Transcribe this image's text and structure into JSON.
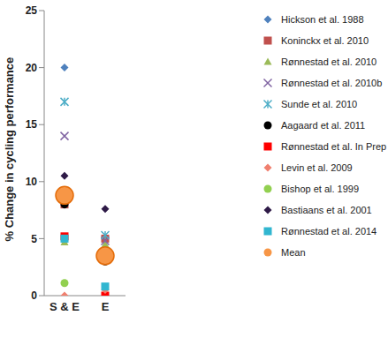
{
  "chart_data": {
    "type": "scatter",
    "y_label": "% Change in cycling performance",
    "categories": [
      "S & E",
      "E"
    ],
    "ylim": [
      0,
      25
    ],
    "yticks": [
      0,
      5,
      10,
      15,
      20,
      25
    ],
    "grid": false,
    "legend": "right",
    "series": [
      {
        "name": "Hickson et al. 1988",
        "color": "#4F81BD",
        "marker": "diamond",
        "values": [
          20,
          null
        ]
      },
      {
        "name": "Koninckx et al. 2010",
        "color": "#C0504D",
        "marker": "square",
        "values": [
          8,
          5
        ]
      },
      {
        "name": "Rønnestad et al. 2010",
        "color": "#9BBB59",
        "marker": "triangle",
        "values": [
          4.7,
          4.5
        ]
      },
      {
        "name": "Rønnestad et al. 2010b",
        "color": "#8064A2",
        "marker": "x",
        "values": [
          14,
          4.8
        ]
      },
      {
        "name": "Sunde et al. 2010",
        "color": "#4BACC6",
        "marker": "asterisk",
        "values": [
          17,
          5.3
        ]
      },
      {
        "name": "Aagaard et al. 2011",
        "color": "#000000",
        "marker": "circle",
        "values": [
          8,
          3
        ]
      },
      {
        "name": "Rønnestad et al. In Prep",
        "color": "#FF0000",
        "marker": "square",
        "values": [
          5.2,
          0
        ]
      },
      {
        "name": "Levin et al. 2009",
        "color": "#F07F6E",
        "marker": "diamond",
        "values": [
          0,
          0.5
        ]
      },
      {
        "name": "Bishop et al. 1999",
        "color": "#92D050",
        "marker": "circle",
        "values": [
          1.1,
          4
        ]
      },
      {
        "name": "Bastiaans et al. 2001",
        "color": "#2E1A47",
        "marker": "diamond",
        "values": [
          10.5,
          7.6
        ]
      },
      {
        "name": "Rønnestad et al. 2014",
        "color": "#31B6D0",
        "marker": "square",
        "values": [
          5,
          0.8
        ]
      },
      {
        "name": "Mean",
        "color": "#F79646",
        "marker": "big_circle",
        "values": [
          8.8,
          3.5
        ]
      }
    ]
  }
}
